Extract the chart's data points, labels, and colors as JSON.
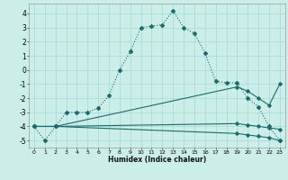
{
  "xlabel": "Humidex (Indice chaleur)",
  "bg_color": "#cceee8",
  "grid_color": "#aaddda",
  "line_color": "#1a6b6b",
  "xlim": [
    -0.5,
    23.5
  ],
  "ylim": [
    -5.5,
    4.7
  ],
  "yticks": [
    -5,
    -4,
    -3,
    -2,
    -1,
    0,
    1,
    2,
    3,
    4
  ],
  "xticks": [
    0,
    1,
    2,
    3,
    4,
    5,
    6,
    7,
    8,
    9,
    10,
    11,
    12,
    13,
    14,
    15,
    16,
    17,
    18,
    19,
    20,
    21,
    22,
    23
  ],
  "series1_x": [
    0,
    1,
    2,
    3,
    4,
    5,
    6,
    7,
    8,
    9,
    10,
    11,
    12,
    13,
    14,
    15,
    16,
    17,
    18,
    19,
    20,
    21,
    22,
    23
  ],
  "series1_y": [
    -4.0,
    -5.0,
    -4.0,
    -3.0,
    -3.0,
    -3.0,
    -2.7,
    -1.8,
    0.0,
    1.3,
    3.0,
    3.1,
    3.2,
    4.2,
    3.0,
    2.6,
    1.2,
    -0.8,
    -0.9,
    -0.9,
    -2.0,
    -2.6,
    -4.0,
    -5.0
  ],
  "series2_x": [
    0,
    2,
    19,
    20,
    21,
    22,
    23
  ],
  "series2_y": [
    -4.0,
    -4.0,
    -4.5,
    -4.6,
    -4.7,
    -4.8,
    -5.0
  ],
  "series3_x": [
    0,
    2,
    19,
    20,
    21,
    22,
    23
  ],
  "series3_y": [
    -4.0,
    -4.0,
    -3.8,
    -3.9,
    -4.0,
    -4.1,
    -4.2
  ],
  "series4_x": [
    0,
    2,
    19,
    20,
    21,
    22,
    23
  ],
  "series4_y": [
    -4.0,
    -4.0,
    -1.2,
    -1.5,
    -2.0,
    -2.5,
    -1.0
  ]
}
